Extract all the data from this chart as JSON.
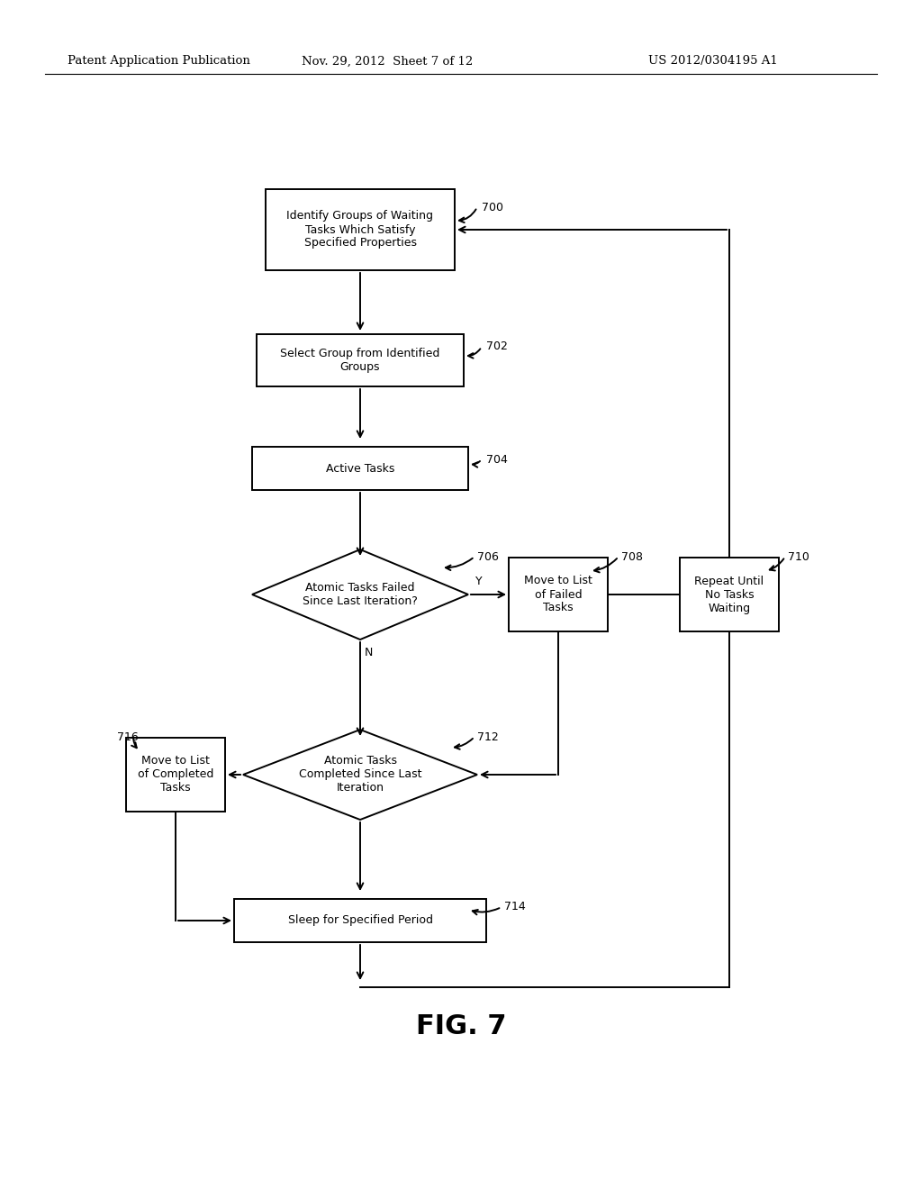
{
  "header_left": "Patent Application Publication",
  "header_mid": "Nov. 29, 2012  Sheet 7 of 12",
  "header_right": "US 2012/0304195 A1",
  "fig_label": "FIG. 7",
  "background_color": "#ffffff",
  "line_color": "#000000"
}
